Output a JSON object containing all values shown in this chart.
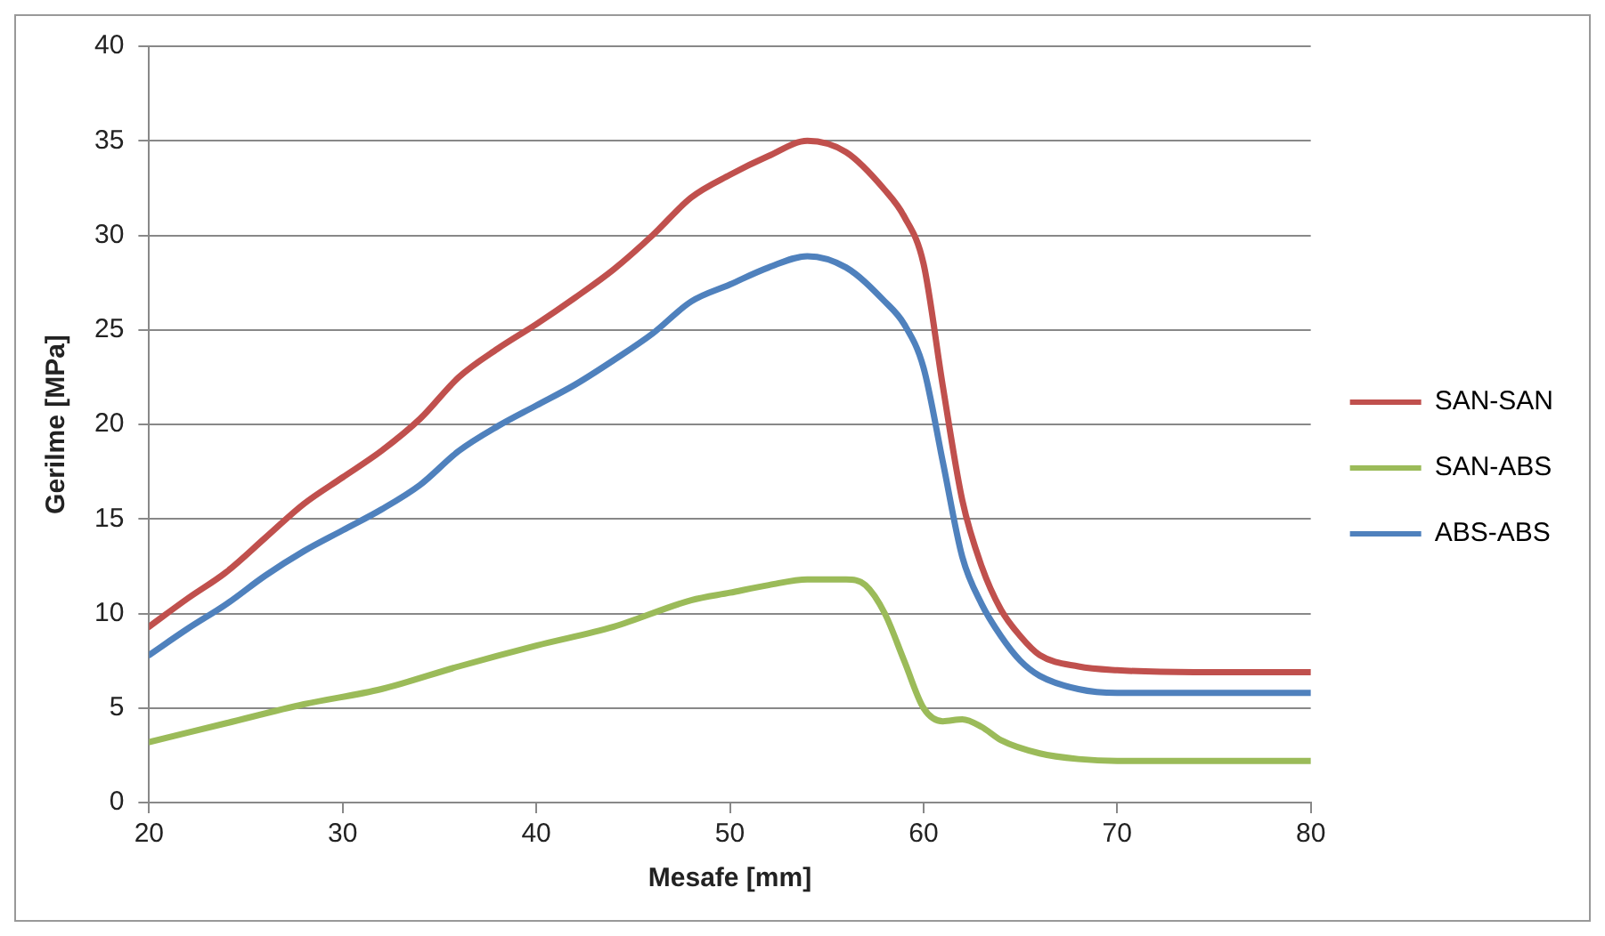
{
  "chart_data": {
    "type": "line",
    "xlabel": "Mesafe [mm]",
    "ylabel": "Gerilme [MPa]",
    "xlim": [
      20,
      80
    ],
    "xticks": [
      20,
      30,
      40,
      50,
      60,
      70,
      80
    ],
    "ylim": [
      0,
      40
    ],
    "yticks": [
      0,
      5,
      10,
      15,
      20,
      25,
      30,
      35,
      40
    ],
    "grid": "y",
    "legend": "right",
    "marker": "none",
    "line_style": "solid",
    "series": [
      {
        "name": "SAN-SAN",
        "color": "#c0504d",
        "x": [
          20,
          22,
          24,
          26,
          28,
          30,
          32,
          34,
          36,
          38,
          40,
          42,
          44,
          46,
          48,
          50,
          52,
          54,
          56,
          58,
          59,
          60,
          61,
          62,
          63,
          64,
          65,
          66,
          68,
          70,
          74,
          80
        ],
        "values": [
          9.3,
          10.8,
          12.2,
          14,
          15.8,
          17.2,
          18.6,
          20.3,
          22.5,
          24,
          25.3,
          26.7,
          28.2,
          30,
          32,
          33.2,
          34.2,
          35,
          34.4,
          32.4,
          31,
          28.5,
          22,
          16,
          12.5,
          10.2,
          8.8,
          7.8,
          7.2,
          7.0,
          6.9,
          6.9
        ]
      },
      {
        "name": "SAN-ABS",
        "color": "#9bbb59",
        "x": [
          20,
          24,
          28,
          32,
          36,
          40,
          44,
          48,
          50,
          52,
          54,
          56,
          57,
          58,
          59,
          60,
          61,
          62,
          63,
          64,
          66,
          68,
          70,
          80
        ],
        "values": [
          3.2,
          4.2,
          5.2,
          6,
          7.2,
          8.3,
          9.3,
          10.7,
          11.1,
          11.5,
          11.8,
          11.8,
          11.5,
          10,
          7.5,
          5,
          4.3,
          4.4,
          4,
          3.3,
          2.6,
          2.3,
          2.2,
          2.2
        ]
      },
      {
        "name": "ABS-ABS",
        "color": "#4f81bd",
        "x": [
          20,
          22,
          24,
          26,
          28,
          30,
          32,
          34,
          36,
          38,
          40,
          42,
          44,
          46,
          48,
          50,
          52,
          54,
          56,
          58,
          59,
          60,
          61,
          62,
          63,
          64,
          65,
          66,
          68,
          70,
          80
        ],
        "values": [
          7.8,
          9.2,
          10.5,
          12,
          13.3,
          14.4,
          15.5,
          16.8,
          18.6,
          19.9,
          21,
          22.1,
          23.4,
          24.8,
          26.5,
          27.4,
          28.3,
          28.9,
          28.3,
          26.5,
          25.3,
          23,
          18,
          13,
          10.5,
          8.8,
          7.5,
          6.7,
          6.0,
          5.8,
          5.8
        ]
      }
    ]
  }
}
